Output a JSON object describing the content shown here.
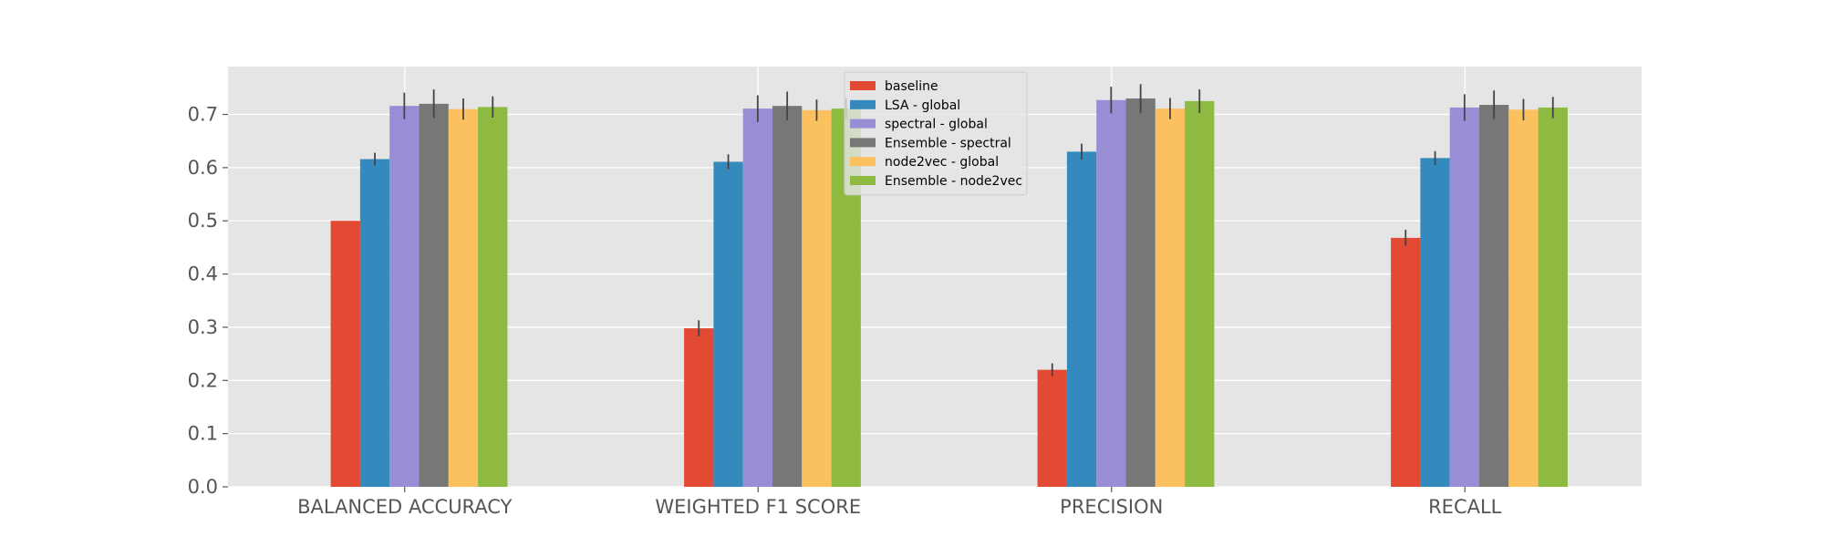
{
  "chart_data": {
    "type": "bar",
    "title": "",
    "xlabel": "",
    "ylabel": "",
    "ylim": [
      0,
      0.79
    ],
    "yticks": [
      "0.0",
      "0.1",
      "0.2",
      "0.3",
      "0.4",
      "0.5",
      "0.6",
      "0.7"
    ],
    "grid": true,
    "legend_position": "top-center",
    "categories": [
      "BALANCED ACCURACY",
      "WEIGHTED F1 SCORE",
      "PRECISION",
      "RECALL"
    ],
    "series": [
      {
        "name": "baseline",
        "color": "#E24A33",
        "values": [
          0.5,
          0.298,
          0.22,
          0.468
        ],
        "errors": [
          0.0,
          0.015,
          0.012,
          0.015
        ]
      },
      {
        "name": "LSA - global",
        "color": "#348ABD",
        "values": [
          0.616,
          0.611,
          0.63,
          0.618
        ],
        "errors": [
          0.012,
          0.014,
          0.015,
          0.013
        ]
      },
      {
        "name": "spectral - global",
        "color": "#988ED5",
        "values": [
          0.716,
          0.711,
          0.727,
          0.713
        ],
        "errors": [
          0.025,
          0.025,
          0.025,
          0.025
        ]
      },
      {
        "name": "Ensemble - spectral",
        "color": "#777777",
        "values": [
          0.72,
          0.716,
          0.73,
          0.718
        ],
        "errors": [
          0.027,
          0.027,
          0.027,
          0.027
        ]
      },
      {
        "name": "node2vec - global",
        "color": "#FBC15E",
        "values": [
          0.71,
          0.708,
          0.711,
          0.709
        ],
        "errors": [
          0.02,
          0.02,
          0.02,
          0.02
        ]
      },
      {
        "name": "Ensemble - node2vec",
        "color": "#8EBA42",
        "values": [
          0.714,
          0.711,
          0.725,
          0.713
        ],
        "errors": [
          0.02,
          0.02,
          0.022,
          0.02
        ]
      }
    ]
  }
}
